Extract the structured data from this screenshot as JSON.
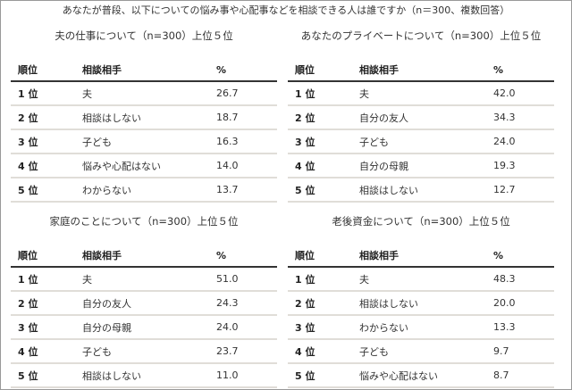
{
  "title": "あなたが普段、以下についての悩み事や心配事などを相談できる人は誰ですか（n＝300、複数回答）",
  "headers": {
    "rank": "順位",
    "partner": "相談相手",
    "pct": "%"
  },
  "tables": [
    {
      "subtitle": "夫の仕事について（n=300）上位５位",
      "rows": [
        [
          "1 位",
          "夫",
          "26.7"
        ],
        [
          "2 位",
          "相談はしない",
          "18.7"
        ],
        [
          "3 位",
          "子ども",
          "16.3"
        ],
        [
          "4 位",
          "悩みや心配はない",
          "14.0"
        ],
        [
          "5 位",
          "わからない",
          "13.7"
        ]
      ]
    },
    {
      "subtitle": "あなたのプライベートについて（n=300）上位５位",
      "rows": [
        [
          "1 位",
          "夫",
          "42.0"
        ],
        [
          "2 位",
          "自分の友人",
          "34.3"
        ],
        [
          "3 位",
          "子ども",
          "24.0"
        ],
        [
          "4 位",
          "自分の母親",
          "19.3"
        ],
        [
          "5 位",
          "相談はしない",
          "12.7"
        ]
      ]
    },
    {
      "subtitle": "家庭のことについて（n=300）上位５位",
      "rows": [
        [
          "1 位",
          "夫",
          "51.0"
        ],
        [
          "2 位",
          "自分の友人",
          "24.3"
        ],
        [
          "3 位",
          "自分の母親",
          "24.0"
        ],
        [
          "4 位",
          "子ども",
          "23.7"
        ],
        [
          "5 位",
          "相談はしない",
          "11.0"
        ]
      ]
    },
    {
      "subtitle": "老後資金について（n=300）上位５位",
      "rows": [
        [
          "1 位",
          "夫",
          "48.3"
        ],
        [
          "2 位",
          "相談はしない",
          "20.0"
        ],
        [
          "3 位",
          "わからない",
          "13.3"
        ],
        [
          "4 位",
          "子ども",
          "9.7"
        ],
        [
          "5 位",
          "悩みや心配はない",
          "8.7"
        ]
      ]
    }
  ]
}
